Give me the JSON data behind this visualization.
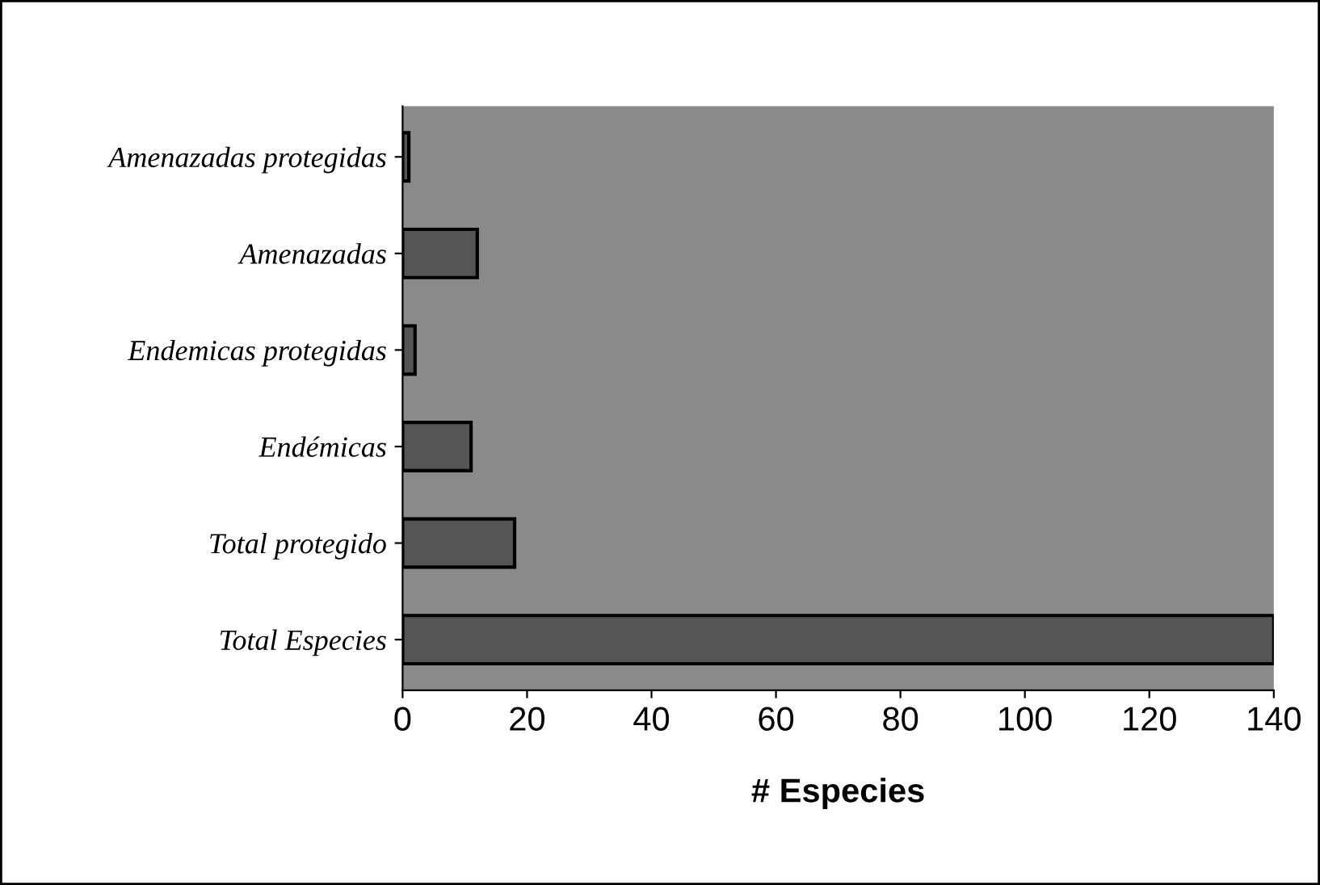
{
  "chart_data": {
    "type": "bar",
    "orientation": "horizontal",
    "xlabel": "# Especies",
    "categories": [
      "Amenazadas protegidas",
      "Amenazadas",
      "Endemicas protegidas",
      "Endémicas",
      "Total protegido",
      "Total Especies"
    ],
    "values": [
      1,
      12,
      2,
      11,
      18,
      140
    ],
    "color": "#555555",
    "xlim": [
      0,
      140
    ],
    "xticks": [
      0,
      20,
      40,
      60,
      80,
      100,
      120,
      140
    ],
    "grid": false,
    "legend": false
  }
}
